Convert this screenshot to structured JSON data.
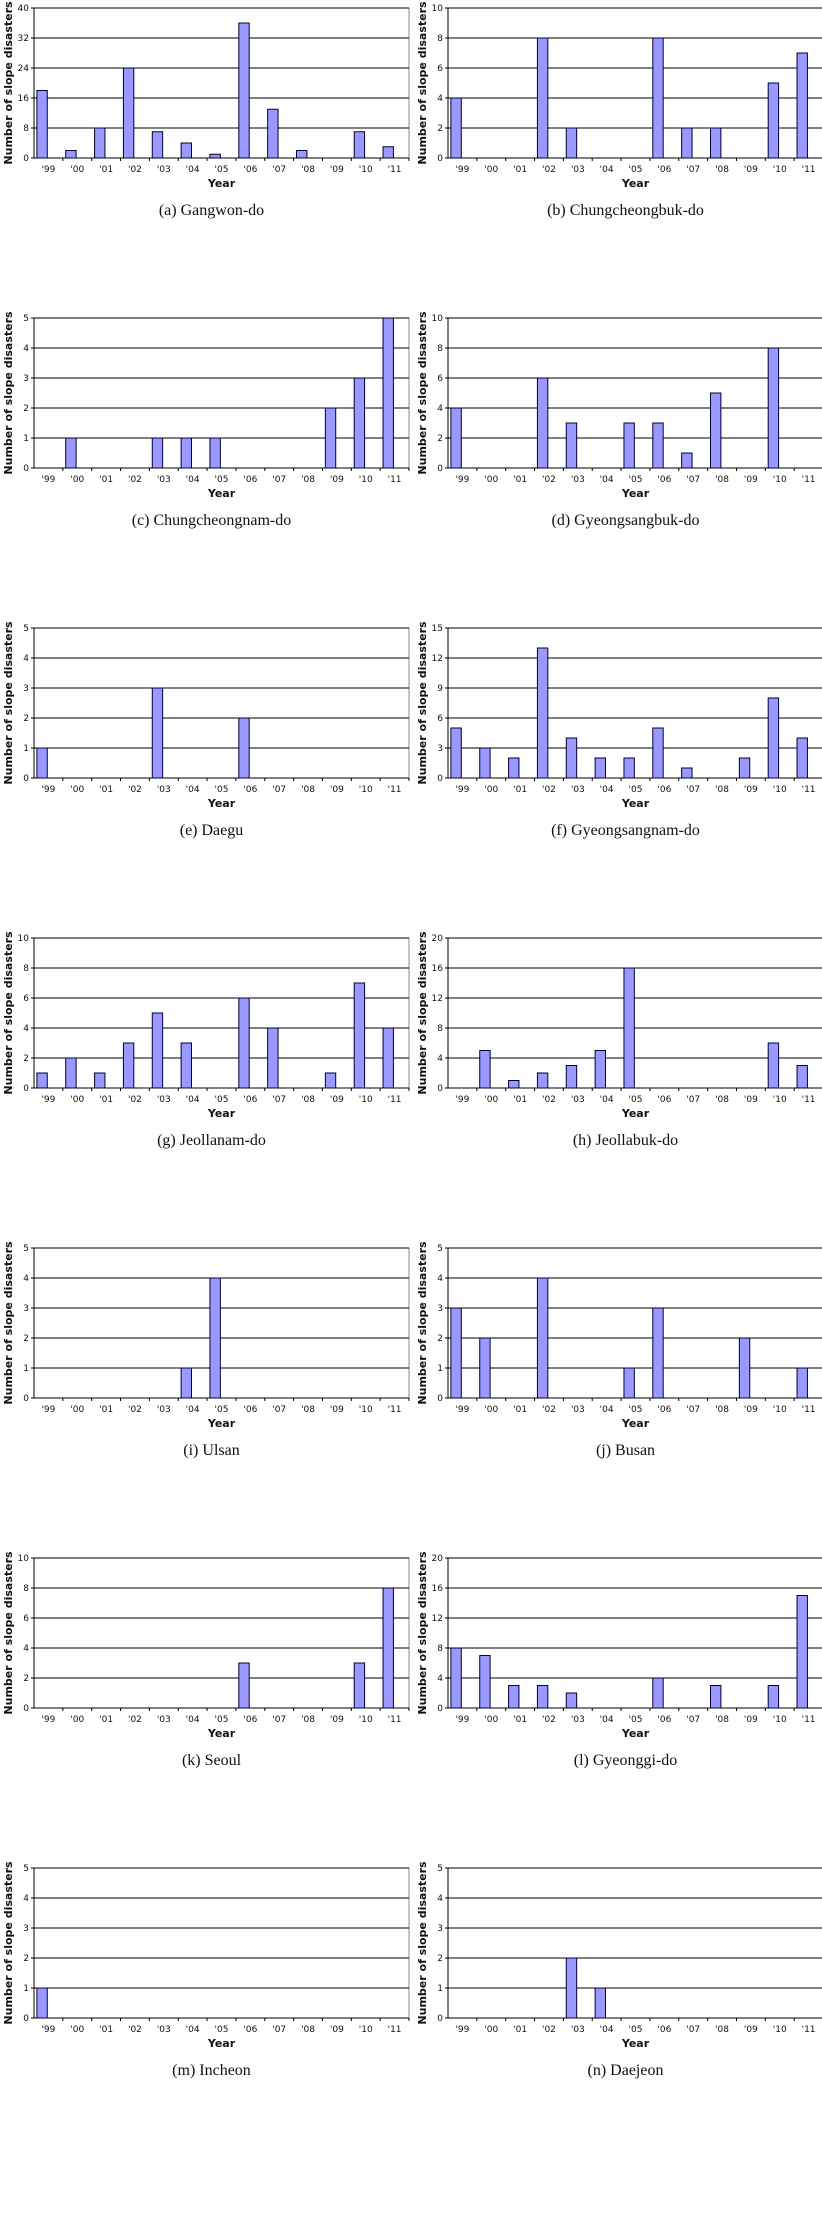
{
  "figure": {
    "x_tick_labels": [
      "'99",
      "'00",
      "'01",
      "'02",
      "'03",
      "'04",
      "'05",
      "'06",
      "'07",
      "'08",
      "'09",
      "'10",
      "'11"
    ],
    "ylabel": "Number of slope disasters",
    "xlabel": "Year",
    "bar_color": "#9999ff",
    "bar_border_color": "#000033"
  },
  "chart_data": [
    {
      "type": "bar",
      "caption": "(a) Gangwon-do",
      "categories": [
        "'99",
        "'00",
        "'01",
        "'02",
        "'03",
        "'04",
        "'05",
        "'06",
        "'07",
        "'08",
        "'09",
        "'10",
        "'11"
      ],
      "values": [
        18,
        2,
        8,
        24,
        7,
        4,
        1,
        36,
        13,
        2,
        0,
        7,
        3
      ],
      "ylim": [
        0,
        40
      ],
      "yticks": [
        0,
        8,
        16,
        24,
        32,
        40
      ],
      "xlabel": "Year",
      "ylabel": "Number of slope disasters",
      "grid": true
    },
    {
      "type": "bar",
      "caption": "(b) Chungcheongbuk-do",
      "categories": [
        "'99",
        "'00",
        "'01",
        "'02",
        "'03",
        "'04",
        "'05",
        "'06",
        "'07",
        "'08",
        "'09",
        "'10",
        "'11"
      ],
      "values": [
        4,
        0,
        0,
        8,
        2,
        0,
        0,
        8,
        2,
        2,
        0,
        5,
        7
      ],
      "ylim": [
        0,
        10
      ],
      "yticks": [
        0,
        2,
        4,
        6,
        8,
        10
      ],
      "xlabel": "Year",
      "ylabel": "Number of slope disasters",
      "grid": true
    },
    {
      "type": "bar",
      "caption": "(c) Chungcheongnam-do",
      "categories": [
        "'99",
        "'00",
        "'01",
        "'02",
        "'03",
        "'04",
        "'05",
        "'06",
        "'07",
        "'08",
        "'09",
        "'10",
        "'11"
      ],
      "values": [
        0,
        1,
        0,
        0,
        1,
        1,
        1,
        0,
        0,
        0,
        2,
        3,
        5
      ],
      "ylim": [
        0,
        5
      ],
      "yticks": [
        0,
        1,
        2,
        3,
        4,
        5
      ],
      "xlabel": "Year",
      "ylabel": "Number of slope disasters",
      "grid": true
    },
    {
      "type": "bar",
      "caption": "(d) Gyeongsangbuk-do",
      "categories": [
        "'99",
        "'00",
        "'01",
        "'02",
        "'03",
        "'04",
        "'05",
        "'06",
        "'07",
        "'08",
        "'09",
        "'10",
        "'11"
      ],
      "values": [
        4,
        0,
        0,
        6,
        3,
        0,
        3,
        3,
        1,
        5,
        0,
        8,
        0
      ],
      "ylim": [
        0,
        10
      ],
      "yticks": [
        0,
        2,
        4,
        6,
        8,
        10
      ],
      "xlabel": "Year",
      "ylabel": "Number of slope disasters",
      "grid": true
    },
    {
      "type": "bar",
      "caption": "(e) Daegu",
      "categories": [
        "'99",
        "'00",
        "'01",
        "'02",
        "'03",
        "'04",
        "'05",
        "'06",
        "'07",
        "'08",
        "'09",
        "'10",
        "'11"
      ],
      "values": [
        1,
        0,
        0,
        0,
        3,
        0,
        0,
        2,
        0,
        0,
        0,
        0,
        0
      ],
      "ylim": [
        0,
        5
      ],
      "yticks": [
        0,
        1,
        2,
        3,
        4,
        5
      ],
      "xlabel": "Year",
      "ylabel": "Number of slope disasters",
      "grid": true
    },
    {
      "type": "bar",
      "caption": "(f) Gyeongsangnam-do",
      "categories": [
        "'99",
        "'00",
        "'01",
        "'02",
        "'03",
        "'04",
        "'05",
        "'06",
        "'07",
        "'08",
        "'09",
        "'10",
        "'11"
      ],
      "values": [
        5,
        3,
        2,
        13,
        4,
        2,
        2,
        5,
        1,
        0,
        2,
        8,
        4
      ],
      "ylim": [
        0,
        15
      ],
      "yticks": [
        0,
        3,
        6,
        9,
        12,
        15
      ],
      "xlabel": "Year",
      "ylabel": "Number of slope disasters",
      "grid": true
    },
    {
      "type": "bar",
      "caption": "(g) Jeollanam-do",
      "categories": [
        "'99",
        "'00",
        "'01",
        "'02",
        "'03",
        "'04",
        "'05",
        "'06",
        "'07",
        "'08",
        "'09",
        "'10",
        "'11"
      ],
      "values": [
        1,
        2,
        1,
        3,
        5,
        3,
        0,
        6,
        4,
        0,
        1,
        7,
        4
      ],
      "ylim": [
        0,
        10
      ],
      "yticks": [
        0,
        2,
        4,
        6,
        8,
        10
      ],
      "xlabel": "Year",
      "ylabel": "Number of slope disasters",
      "grid": true
    },
    {
      "type": "bar",
      "caption": "(h) Jeollabuk-do",
      "categories": [
        "'99",
        "'00",
        "'01",
        "'02",
        "'03",
        "'04",
        "'05",
        "'06",
        "'07",
        "'08",
        "'09",
        "'10",
        "'11"
      ],
      "values": [
        0,
        5,
        1,
        2,
        3,
        5,
        16,
        0,
        0,
        0,
        0,
        6,
        3
      ],
      "ylim": [
        0,
        20
      ],
      "yticks": [
        0,
        4,
        8,
        12,
        16,
        20
      ],
      "xlabel": "Year",
      "ylabel": "Number of slope disasters",
      "grid": true
    },
    {
      "type": "bar",
      "caption": "(i) Ulsan",
      "categories": [
        "'99",
        "'00",
        "'01",
        "'02",
        "'03",
        "'04",
        "'05",
        "'06",
        "'07",
        "'08",
        "'09",
        "'10",
        "'11"
      ],
      "values": [
        0,
        0,
        0,
        0,
        0,
        1,
        4,
        0,
        0,
        0,
        0,
        0,
        0
      ],
      "ylim": [
        0,
        5
      ],
      "yticks": [
        0,
        1,
        2,
        3,
        4,
        5
      ],
      "xlabel": "Year",
      "ylabel": "Number of slope disasters",
      "grid": true
    },
    {
      "type": "bar",
      "caption": "(j) Busan",
      "categories": [
        "'99",
        "'00",
        "'01",
        "'02",
        "'03",
        "'04",
        "'05",
        "'06",
        "'07",
        "'08",
        "'09",
        "'10",
        "'11"
      ],
      "values": [
        3,
        2,
        0,
        4,
        0,
        0,
        1,
        3,
        0,
        0,
        2,
        0,
        1
      ],
      "ylim": [
        0,
        5
      ],
      "yticks": [
        0,
        1,
        2,
        3,
        4,
        5
      ],
      "xlabel": "Year",
      "ylabel": "Number of slope disasters",
      "grid": true
    },
    {
      "type": "bar",
      "caption": "(k) Seoul",
      "categories": [
        "'99",
        "'00",
        "'01",
        "'02",
        "'03",
        "'04",
        "'05",
        "'06",
        "'07",
        "'08",
        "'09",
        "'10",
        "'11"
      ],
      "values": [
        0,
        0,
        0,
        0,
        0,
        0,
        0,
        3,
        0,
        0,
        0,
        3,
        8
      ],
      "ylim": [
        0,
        10
      ],
      "yticks": [
        0,
        2,
        4,
        6,
        8,
        10
      ],
      "xlabel": "Year",
      "ylabel": "Number of slope disasters",
      "grid": true
    },
    {
      "type": "bar",
      "caption": "(l) Gyeonggi-do",
      "categories": [
        "'99",
        "'00",
        "'01",
        "'02",
        "'03",
        "'04",
        "'05",
        "'06",
        "'07",
        "'08",
        "'09",
        "'10",
        "'11"
      ],
      "values": [
        8,
        7,
        3,
        3,
        2,
        0,
        0,
        4,
        0,
        3,
        0,
        3,
        15
      ],
      "ylim": [
        0,
        20
      ],
      "yticks": [
        0,
        4,
        8,
        12,
        16,
        20
      ],
      "xlabel": "Year",
      "ylabel": "Number of slope disasters",
      "grid": true
    },
    {
      "type": "bar",
      "caption": "(m) Incheon",
      "categories": [
        "'99",
        "'00",
        "'01",
        "'02",
        "'03",
        "'04",
        "'05",
        "'06",
        "'07",
        "'08",
        "'09",
        "'10",
        "'11"
      ],
      "values": [
        1,
        0,
        0,
        0,
        0,
        0,
        0,
        0,
        0,
        0,
        0,
        0,
        0
      ],
      "ylim": [
        0,
        5
      ],
      "yticks": [
        0,
        1,
        2,
        3,
        4,
        5
      ],
      "xlabel": "Year",
      "ylabel": "Number of slope disasters",
      "grid": true
    },
    {
      "type": "bar",
      "caption": "(n) Daejeon",
      "categories": [
        "'99",
        "'00",
        "'01",
        "'02",
        "'03",
        "'04",
        "'05",
        "'06",
        "'07",
        "'08",
        "'09",
        "'10",
        "'11"
      ],
      "values": [
        0,
        0,
        0,
        0,
        2,
        1,
        0,
        0,
        0,
        0,
        0,
        0,
        0
      ],
      "ylim": [
        0,
        5
      ],
      "yticks": [
        0,
        1,
        2,
        3,
        4,
        5
      ],
      "xlabel": "Year",
      "ylabel": "Number of slope disasters",
      "grid": true
    }
  ]
}
